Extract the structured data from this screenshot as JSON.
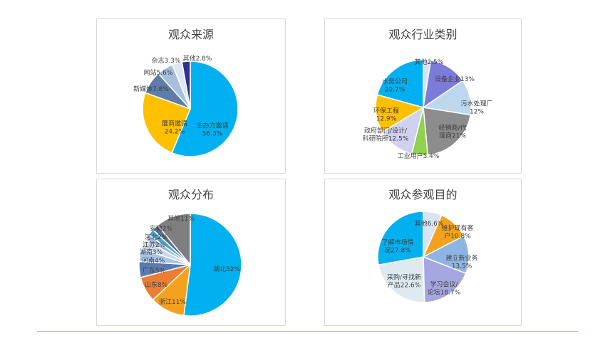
{
  "chart_data": [
    {
      "type": "pie",
      "title": "观众来源",
      "slices": [
        {
          "label": "主办方邀请",
          "value": 56.3,
          "text": [
            "主办方邀请",
            "56.3%"
          ],
          "color": "#00b0f0"
        },
        {
          "label": "展商邀请",
          "value": 24.2,
          "text": [
            "展商邀请",
            "24.2%"
          ],
          "color": "#ffc000"
        },
        {
          "label": "新媒体",
          "value": 7.8,
          "text": [
            "新媒体7.8%"
          ],
          "color": "#5f7da8"
        },
        {
          "label": "网站",
          "value": 5.6,
          "text": [
            "网站5.6%"
          ],
          "color": "#a5bfdd"
        },
        {
          "label": "杂志",
          "value": 3.3,
          "text": [
            "杂志3.3%"
          ],
          "color": "#dce6f2"
        },
        {
          "label": "其他",
          "value": 2.8,
          "text": [
            "其他2.8%"
          ],
          "color": "#2e3192"
        }
      ]
    },
    {
      "type": "pie",
      "title": "观众行业类别",
      "slices": [
        {
          "label": "其他",
          "value": 2.5,
          "text": [
            "其他2.5%"
          ],
          "color": "#d9e1f2"
        },
        {
          "label": "设备企业",
          "value": 13,
          "text": [
            "设备企业13%"
          ],
          "color": "#7b7bd9"
        },
        {
          "label": "污水处理厂",
          "value": 12,
          "text": [
            "污水处理厂",
            "12%"
          ],
          "color": "#bdd7ee"
        },
        {
          "label": "经销商/代理商",
          "value": 21,
          "text": [
            "经销商/代",
            "理商21%"
          ],
          "color": "#8c8c8c"
        },
        {
          "label": "工业用户",
          "value": 5.4,
          "text": [
            "工业用户5.4%"
          ],
          "color": "#92d050"
        },
        {
          "label": "政府部门/设计/科研院所",
          "value": 12.5,
          "text": [
            "政府部门/设计/",
            "科研院所12.5%"
          ],
          "color": "#d0d0f0"
        },
        {
          "label": "环保工程",
          "value": 12.9,
          "text": [
            "环保工程",
            "12.9%"
          ],
          "color": "#ffc000"
        },
        {
          "label": "水务公司",
          "value": 20.7,
          "text": [
            "水务公司",
            "20.7%"
          ],
          "color": "#00b0f0"
        }
      ]
    },
    {
      "type": "pie",
      "title": "观众分布",
      "slices": [
        {
          "label": "湖北",
          "value": 52,
          "text": [
            "湖北52%"
          ],
          "color": "#00b0f0"
        },
        {
          "label": "浙江",
          "value": 11,
          "text": [
            "浙江11%"
          ],
          "color": "#f4a21e"
        },
        {
          "label": "山东",
          "value": 8,
          "text": [
            "山东8%"
          ],
          "color": "#ed7d31"
        },
        {
          "label": "广东",
          "value": 5,
          "text": [
            "广东5%"
          ],
          "color": "#5b7bb0"
        },
        {
          "label": "河南",
          "value": 4,
          "text": [
            "河南4%"
          ],
          "color": "#a9c4e8"
        },
        {
          "label": "湖南",
          "value": 3,
          "text": [
            "湖南3%"
          ],
          "color": "#c9daf0"
        },
        {
          "label": "江苏",
          "value": 2,
          "text": [
            "江苏2%"
          ],
          "color": "#9fb8d8"
        },
        {
          "label": "河北",
          "value": 2,
          "text": [
            "河北2%"
          ],
          "color": "#4aa3c8"
        },
        {
          "label": "安徽",
          "value": 2,
          "text": [
            "安徽2%"
          ],
          "color": "#5a6f90"
        },
        {
          "label": "其他",
          "value": 11,
          "text": [
            "其他11%"
          ],
          "color": "#7f7f7f"
        }
      ]
    },
    {
      "type": "pie",
      "title": "观众参观目的",
      "slices": [
        {
          "label": "其他",
          "value": 6.6,
          "text": [
            "其他6.6%"
          ],
          "color": "#dae3f3"
        },
        {
          "label": "维护现有客户",
          "value": 10.8,
          "text": [
            "维护现有客",
            "户10.8%"
          ],
          "color": "#f4a21e"
        },
        {
          "label": "建立新业务",
          "value": 13.5,
          "text": [
            "建立新业务",
            "13.5%"
          ],
          "color": "#8eb4e3"
        },
        {
          "label": "学习会议/论坛",
          "value": 18.7,
          "text": [
            "学习会议/",
            "论坛18.7%"
          ],
          "color": "#a6a6e0"
        },
        {
          "label": "采购/寻找新产品",
          "value": 22.6,
          "text": [
            "采购/寻找新",
            "产品22.6%"
          ],
          "color": "#deeaf0"
        },
        {
          "label": "了解市场情况",
          "value": 27.8,
          "text": [
            "了解市场情",
            "况27.8%"
          ],
          "color": "#00b0f0"
        }
      ]
    }
  ]
}
